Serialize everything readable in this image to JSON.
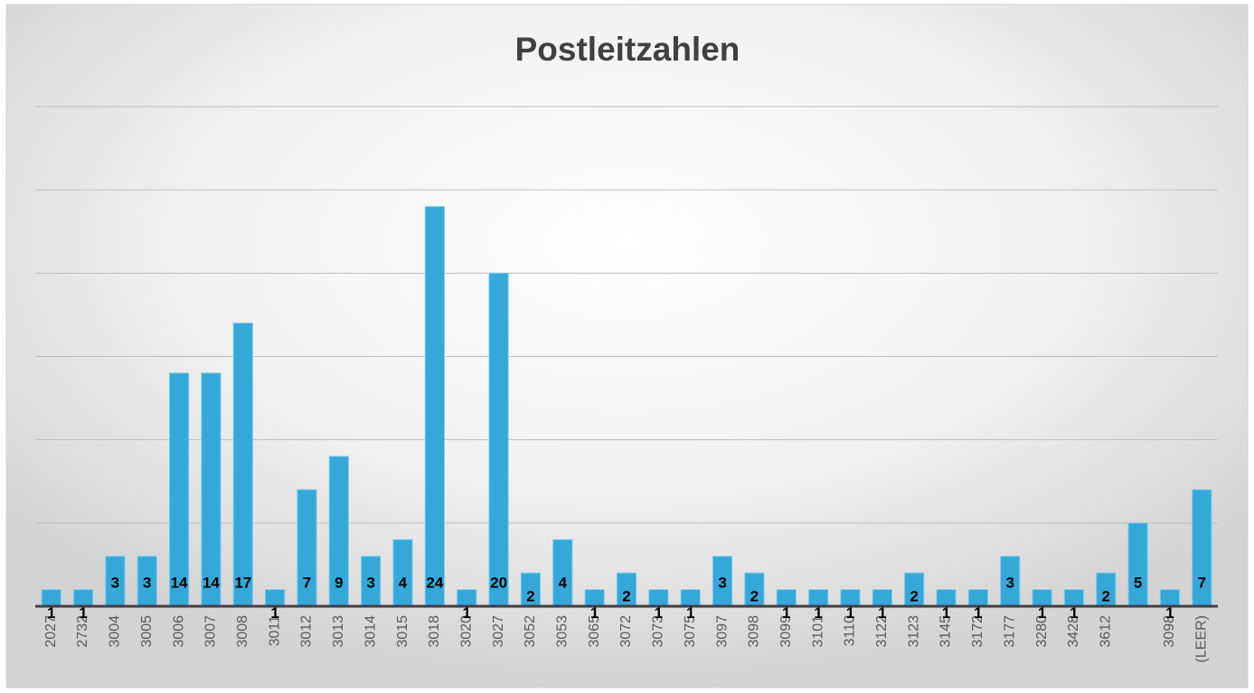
{
  "chart_data": {
    "type": "bar",
    "title": "Postleitzahlen",
    "categories": [
      "2027",
      "2732",
      "3004",
      "3005",
      "3006",
      "3007",
      "3008",
      "3011",
      "3012",
      "3013",
      "3014",
      "3015",
      "3018",
      "3020",
      "3027",
      "3052",
      "3053",
      "3065",
      "3072",
      "3073",
      "3075",
      "3097",
      "3098",
      "3099",
      "3101",
      "3110",
      "3122",
      "3123",
      "3145",
      "3172",
      "3177",
      "3280",
      "3428",
      "3612",
      null,
      "3098",
      "(LEER)"
    ],
    "values": [
      1,
      1,
      3,
      3,
      14,
      14,
      17,
      1,
      7,
      9,
      3,
      4,
      24,
      1,
      20,
      2,
      4,
      1,
      2,
      1,
      1,
      3,
      2,
      1,
      1,
      1,
      1,
      2,
      1,
      1,
      3,
      1,
      1,
      2,
      5,
      1,
      7
    ],
    "color": "#35a8da",
    "ylim": [
      0,
      30
    ],
    "yticks": [
      0,
      5,
      10,
      15,
      20,
      25,
      30
    ],
    "grid": true
  }
}
